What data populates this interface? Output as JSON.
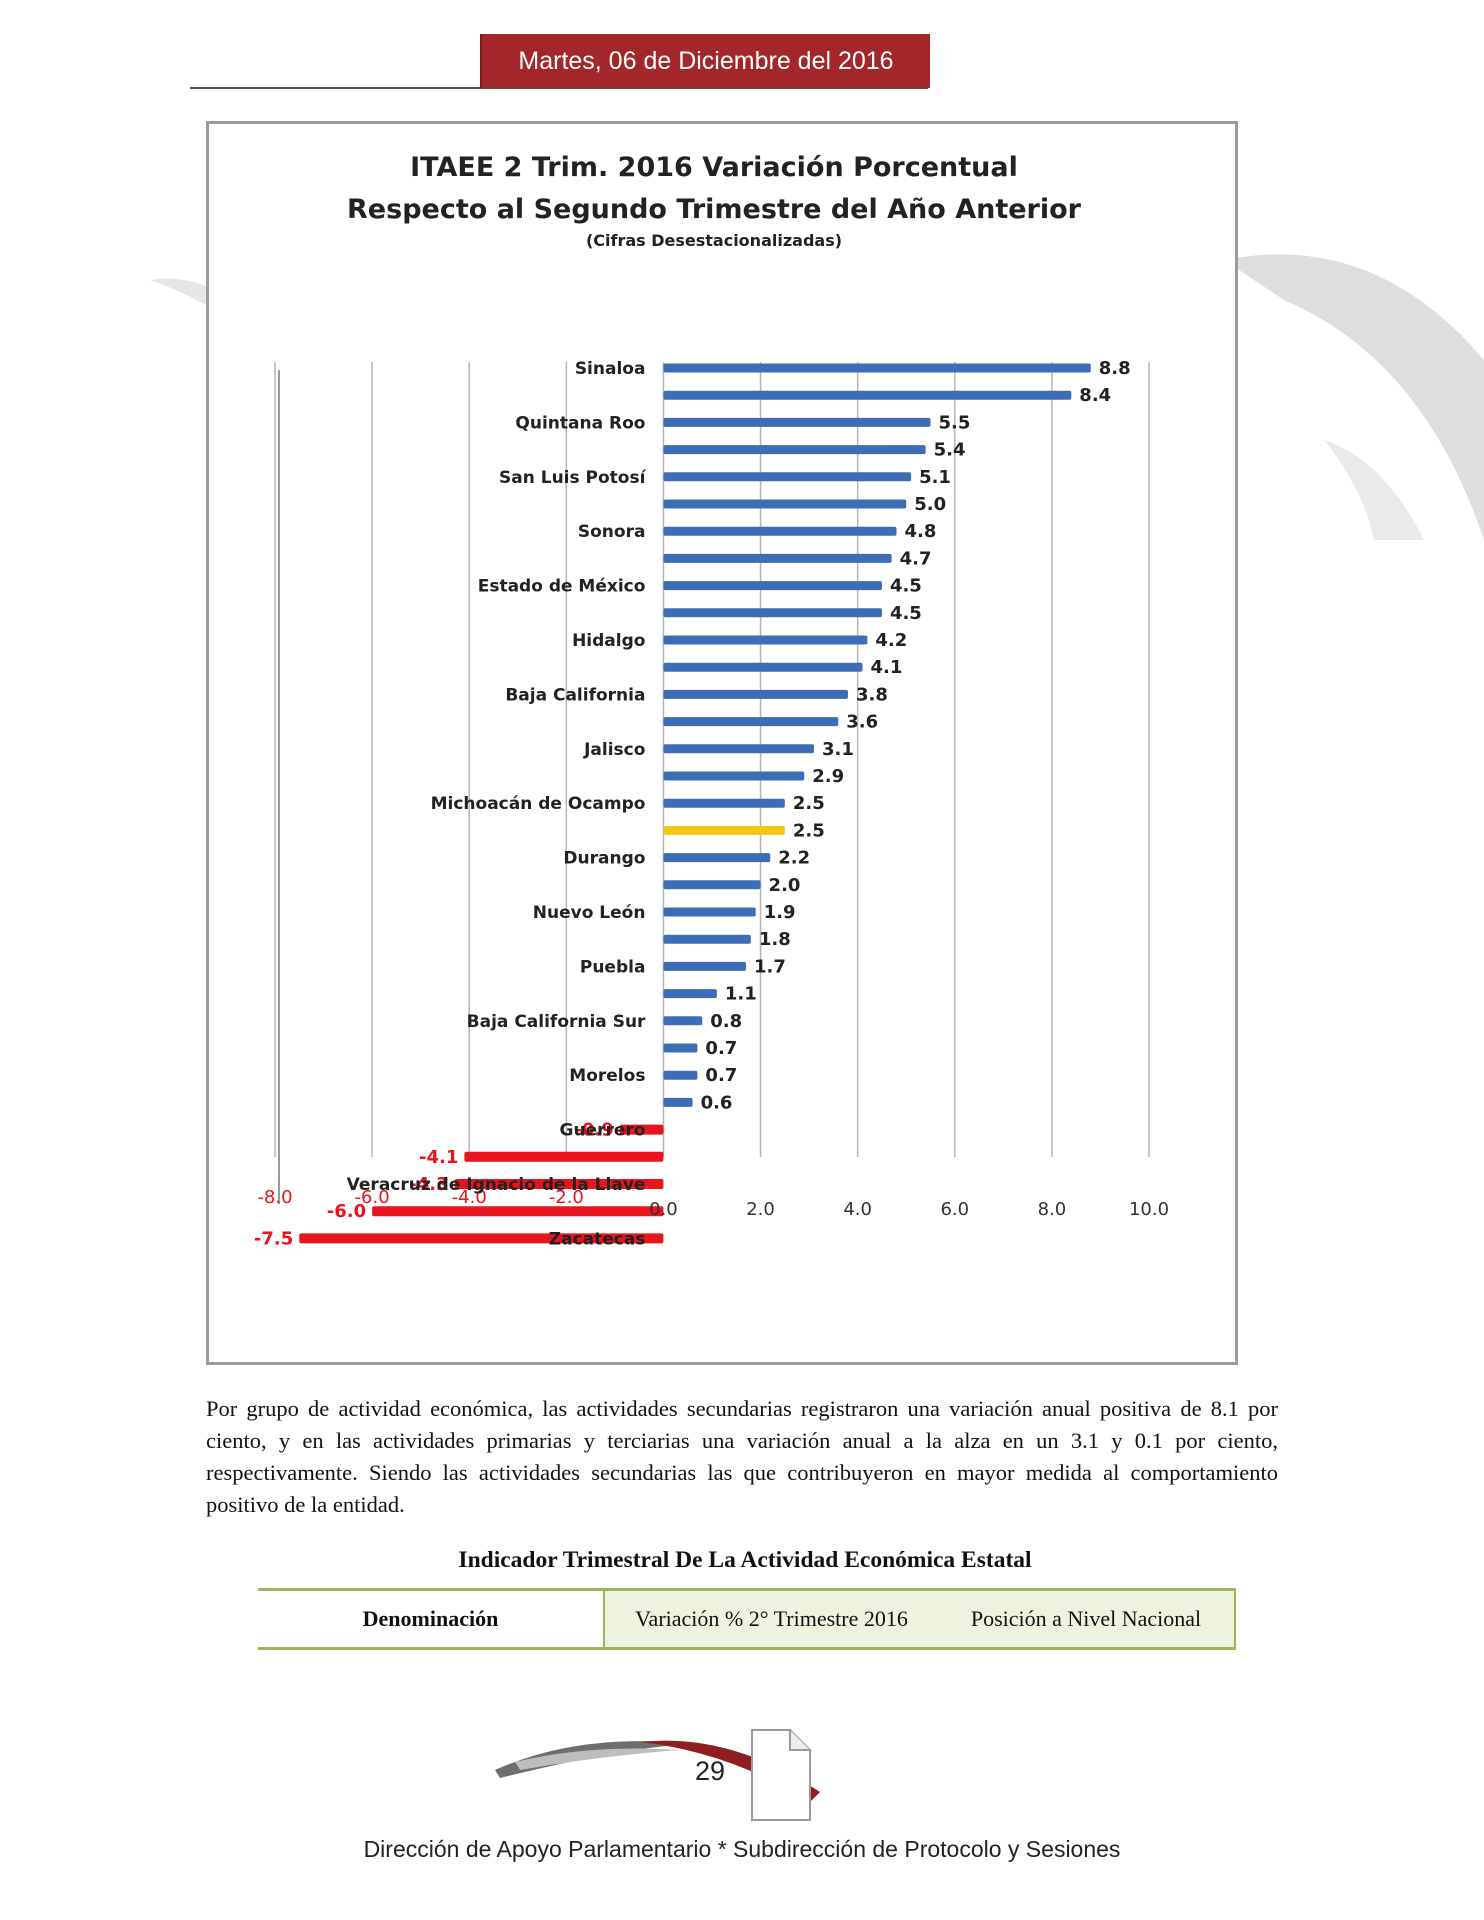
{
  "header": {
    "date": "Martes, 06 de Diciembre  del 2016"
  },
  "chart_data": {
    "type": "bar",
    "orientation": "horizontal",
    "title": "ITAEE 2 Trim. 2016 Variación Porcentual",
    "title_line2": "Respecto al Segundo Trimestre del Año Anterior",
    "subtitle": "(Cifras Desestacionalizadas)",
    "category_labels": [
      "Sinaloa",
      "",
      "Quintana Roo",
      "",
      "San Luis Potosí",
      "",
      "Sonora",
      "",
      "Estado de México",
      "",
      "Hidalgo",
      "",
      "Baja California",
      "",
      "Jalisco",
      "",
      "Michoacán de Ocampo",
      "",
      "Durango",
      "",
      "Nuevo León",
      "",
      "Puebla",
      "",
      "Baja California Sur",
      "",
      "Morelos",
      "",
      "Guerrero",
      "",
      "Veracruz de Ignacio de la Llave",
      "",
      "Zacatecas"
    ],
    "values": [
      8.8,
      8.4,
      5.5,
      5.4,
      5.1,
      5.0,
      4.8,
      4.7,
      4.5,
      4.5,
      4.2,
      4.1,
      3.8,
      3.6,
      3.1,
      2.9,
      2.5,
      2.5,
      2.2,
      2.0,
      1.9,
      1.8,
      1.7,
      1.1,
      0.8,
      0.7,
      0.7,
      0.6,
      -0.9,
      -4.1,
      -4.3,
      -6.0,
      -7.5
    ],
    "value_labels": [
      "8.8",
      "8.4",
      "5.5",
      "5.4",
      "5.1",
      "5.0",
      "4.8",
      "4.7",
      "4.5",
      "4.5",
      "4.2",
      "4.1",
      "3.8",
      "3.6",
      "3.1",
      "2.9",
      "2.5",
      "2.5",
      "2.2",
      "2.0",
      "1.9",
      "1.8",
      "1.7",
      "1.1",
      "0.8",
      "0.7",
      "0.7",
      "0.6",
      "-0.9",
      "-4.1",
      "-4.3",
      "-6.0",
      "-7.5"
    ],
    "highlight_index": 17,
    "xlim": [
      -8.0,
      10.0
    ],
    "x_ticks": [
      "-8.0",
      "-6.0",
      "-4.0",
      "-2.0",
      "0.0",
      "2.0",
      "4.0",
      "6.0",
      "8.0",
      "10.0"
    ],
    "grid": true,
    "colors": {
      "positive": "#3d6db5",
      "negative": "#e8141e",
      "highlight": "#f5c518",
      "negative_text": "#e8141e"
    }
  },
  "body": {
    "paragraph": "Por grupo de actividad económica, las actividades secundarias registraron una variación anual positiva de 8.1 por ciento, y en las actividades primarias y terciarias una variación anual a la alza en un 3.1 y 0.1 por ciento, respectivamente. Siendo las actividades secundarias las que contribuyeron en mayor medida al comportamiento positivo de la entidad."
  },
  "table": {
    "title": "Indicador Trimestral De La Actividad Económica Estatal",
    "headers": [
      "Denominación",
      "Variación % 2° Trimestre 2016",
      "Posición a Nivel Nacional"
    ]
  },
  "footer": {
    "page_number": "29",
    "text": "Dirección de Apoyo Parlamentario * Subdirección de Protocolo y Sesiones"
  }
}
